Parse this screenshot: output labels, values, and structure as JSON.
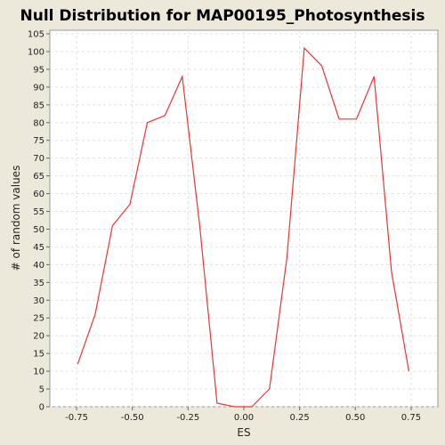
{
  "chart_data": {
    "type": "line",
    "title": "Null Distribution for MAP00195_Photosynthesis",
    "xlabel": "ES",
    "ylabel": "# of random values",
    "xlim": [
      -0.87,
      0.87
    ],
    "ylim": [
      0,
      106
    ],
    "xticks": [
      -0.75,
      -0.5,
      -0.25,
      0.0,
      0.25,
      0.5,
      0.75
    ],
    "xtick_labels": [
      "-0.75",
      "-0.50",
      "-0.25",
      "0.00",
      "0.25",
      "0.50",
      "0.75"
    ],
    "yticks": [
      0,
      5,
      10,
      15,
      20,
      25,
      30,
      35,
      40,
      45,
      50,
      55,
      60,
      65,
      70,
      75,
      80,
      85,
      90,
      95,
      100,
      105
    ],
    "ytick_labels": [
      "0",
      "5",
      "10",
      "15",
      "20",
      "25",
      "30",
      "35",
      "40",
      "45",
      "50",
      "55",
      "60",
      "65",
      "70",
      "75",
      "80",
      "85",
      "90",
      "95",
      "100",
      "105"
    ],
    "grid": true,
    "series": [
      {
        "x": [
          -0.745,
          -0.667,
          -0.589,
          -0.511,
          -0.433,
          -0.354,
          -0.276,
          -0.198,
          -0.12,
          -0.042,
          0.036,
          0.115,
          0.193,
          0.271,
          0.349,
          0.427,
          0.505,
          0.584,
          0.662,
          0.74
        ],
        "y": [
          12,
          26,
          51,
          57,
          80,
          82,
          93,
          51,
          1,
          0,
          0,
          5,
          42,
          101,
          96,
          81,
          81,
          93,
          38,
          10
        ],
        "color": "#ee3333"
      }
    ]
  },
  "colors": {
    "background": "#ede9da",
    "plot_background": "#ffffff",
    "grid": "#e2e2e2",
    "line": "#ee3333"
  }
}
